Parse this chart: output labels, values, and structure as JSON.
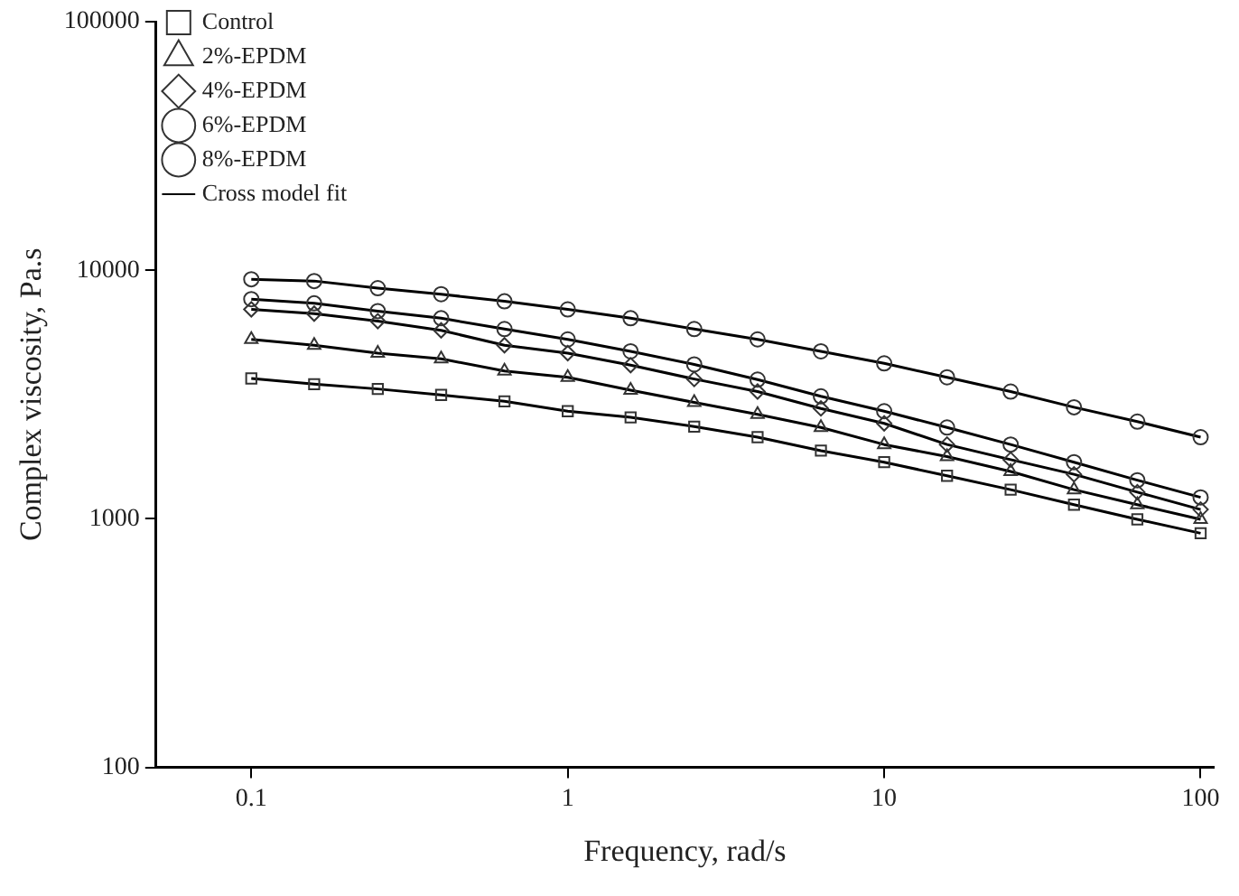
{
  "chart_data": {
    "type": "scatter",
    "xlabel": "Frequency, rad/s",
    "ylabel": "Complex viscosity, Pa.s",
    "log": "xy",
    "xlim": [
      0.05,
      110
    ],
    "xticks": [
      0.1,
      1,
      10,
      100
    ],
    "ylim": [
      100,
      100000
    ],
    "yticks": [
      100,
      1000,
      10000,
      100000
    ],
    "grid": false,
    "legend": "top left",
    "x": [
      0.1,
      0.158,
      0.251,
      0.398,
      0.631,
      1,
      1.58,
      2.51,
      3.98,
      6.31,
      10,
      15.8,
      25.1,
      39.8,
      63.1,
      100
    ],
    "series": [
      {
        "name": "Control",
        "color": "#333333",
        "marker": "square",
        "values": [
          3670,
          3480,
          3330,
          3150,
          2970,
          2710,
          2560,
          2350,
          2130,
          1880,
          1690,
          1490,
          1310,
          1140,
          995,
          875
        ]
      },
      {
        "name": "2%-EPDM",
        "color": "#333333",
        "marker": "triangle",
        "values": [
          5270,
          4990,
          4640,
          4400,
          3930,
          3710,
          3290,
          2940,
          2630,
          2330,
          1990,
          1780,
          1550,
          1310,
          1140,
          995
        ]
      },
      {
        "name": "4%-EPDM",
        "color": "#333333",
        "marker": "diamond",
        "values": [
          6960,
          6690,
          6240,
          5730,
          4990,
          4640,
          4150,
          3650,
          3250,
          2780,
          2420,
          1990,
          1730,
          1510,
          1280,
          1090
        ]
      },
      {
        "name": "6%-EPDM",
        "color": "#333333",
        "marker": "circle",
        "values": [
          7650,
          7360,
          6850,
          6410,
          5800,
          5270,
          4720,
          4180,
          3630,
          3110,
          2710,
          2330,
          1990,
          1690,
          1430,
          1220
        ]
      },
      {
        "name": "8%-EPDM",
        "color": "#333333",
        "marker": "circle",
        "values": [
          9200,
          9050,
          8470,
          8010,
          7500,
          6960,
          6410,
          5800,
          5270,
          4720,
          4220,
          3710,
          3250,
          2810,
          2460,
          2130
        ]
      },
      {
        "name": "Cross model fit",
        "type": "line",
        "color": "#000000",
        "marker": "none",
        "line_style": "solid",
        "values": [
          3670,
          3480,
          3330,
          3150,
          2970,
          2710,
          2560,
          2350,
          2130,
          1880,
          1690,
          1490,
          1310,
          1140,
          995,
          875
        ]
      },
      {
        "type": "line",
        "color": "#000000",
        "marker": "none",
        "line_style": "solid",
        "values": [
          5270,
          4990,
          4640,
          4400,
          3930,
          3710,
          3290,
          2940,
          2630,
          2330,
          1990,
          1780,
          1550,
          1310,
          1140,
          995
        ]
      },
      {
        "type": "line",
        "color": "#000000",
        "marker": "none",
        "line_style": "solid",
        "values": [
          6960,
          6690,
          6240,
          5730,
          4990,
          4640,
          4150,
          3650,
          3250,
          2780,
          2420,
          1990,
          1730,
          1510,
          1280,
          1090
        ]
      },
      {
        "type": "line",
        "color": "#000000",
        "marker": "none",
        "line_style": "solid",
        "values": [
          7650,
          7360,
          6850,
          6410,
          5800,
          5270,
          4720,
          4180,
          3630,
          3110,
          2710,
          2330,
          1990,
          1690,
          1430,
          1220
        ]
      },
      {
        "type": "line",
        "color": "#000000",
        "marker": "none",
        "line_style": "solid",
        "values": [
          9200,
          9050,
          8470,
          8010,
          7500,
          6960,
          6410,
          5800,
          5270,
          4720,
          4220,
          3710,
          3250,
          2810,
          2460,
          2130
        ]
      }
    ]
  }
}
